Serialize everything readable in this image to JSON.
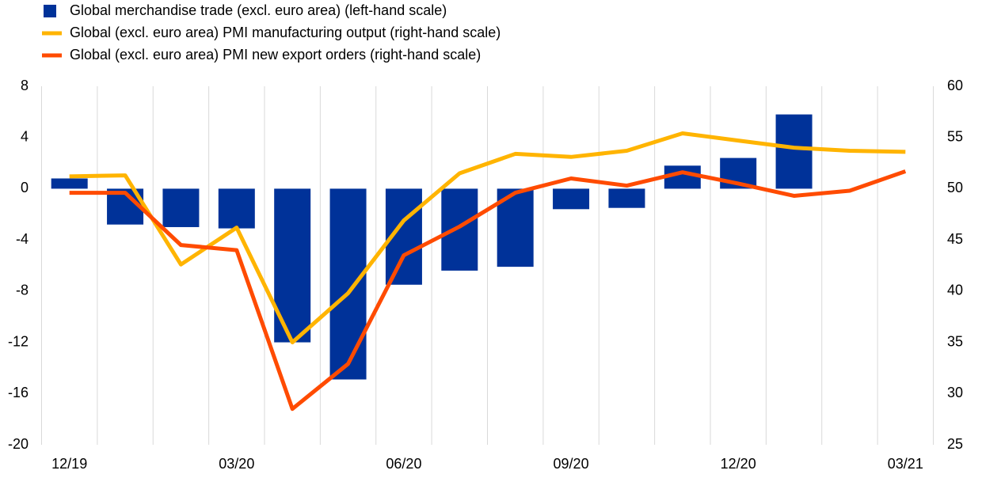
{
  "chart_data": {
    "type": "bar_line",
    "categories": [
      "12/19",
      null,
      null,
      "03/20",
      null,
      null,
      "06/20",
      null,
      null,
      "09/20",
      null,
      null,
      "12/20",
      null,
      null,
      "03/21"
    ],
    "series": [
      {
        "name": "Global merchandise trade (excl. euro area) (left-hand scale)",
        "type": "bar",
        "color": "#003299",
        "axis": "y",
        "values": [
          0.8,
          -2.8,
          -3.0,
          -3.1,
          -12.0,
          -14.9,
          -7.5,
          -6.4,
          -6.1,
          -1.6,
          -1.5,
          1.8,
          2.4,
          5.8,
          null,
          null
        ]
      },
      {
        "name": "Global (excl. euro area) PMI manufacturing output (right-hand scale)",
        "type": "line",
        "color": "#ffb400",
        "axis": "y2",
        "values": [
          51.2,
          51.3,
          42.6,
          46.2,
          35.0,
          39.8,
          46.9,
          51.5,
          53.4,
          53.1,
          53.7,
          55.4,
          54.7,
          54.0,
          53.7,
          53.6
        ]
      },
      {
        "name": "Global (excl. euro area) PMI new export orders (right-hand scale)",
        "type": "line",
        "color": "#ff4b00",
        "axis": "y2",
        "values": [
          49.6,
          49.6,
          44.5,
          44.0,
          28.5,
          32.9,
          43.5,
          46.3,
          49.6,
          51.0,
          50.3,
          51.6,
          50.5,
          49.3,
          49.8,
          51.7
        ]
      }
    ],
    "ylim": [
      -20,
      8
    ],
    "yticks": [
      -20,
      -16,
      -12,
      -8,
      -4,
      0,
      4,
      8
    ],
    "y2lim": [
      25,
      60
    ],
    "y2ticks": [
      25,
      30,
      35,
      40,
      45,
      50,
      55,
      60
    ]
  }
}
